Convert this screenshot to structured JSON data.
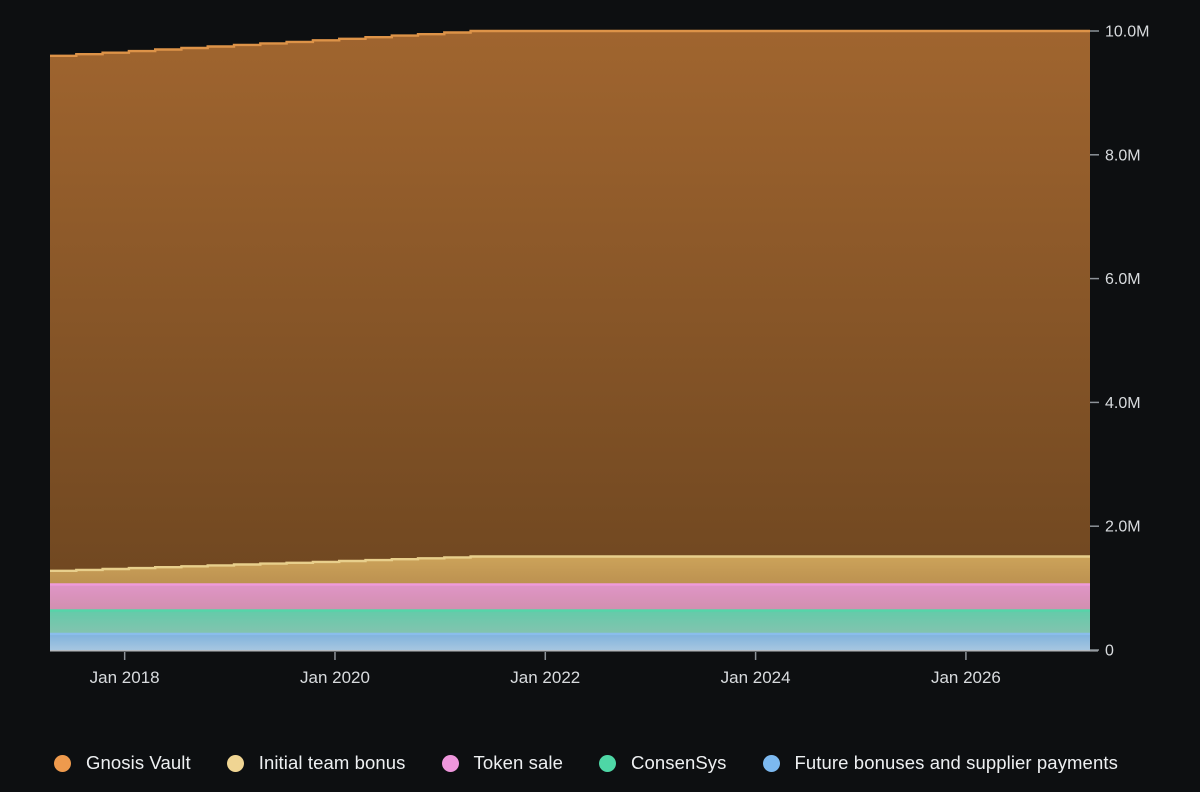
{
  "page": {
    "background_color": "#0d0f11"
  },
  "axis": {
    "line_color": "#c7cbd0",
    "tick_color": "#8d9399",
    "label_color": "#d8dbde"
  },
  "chart_data": {
    "type": "area",
    "stacked": true,
    "step_interpolation": true,
    "grid": false,
    "legend_position": "bottom",
    "x_unit": "decimal_year",
    "xlim": [
      2017.29,
      2027.18
    ],
    "ylim": [
      0,
      10
    ],
    "y_unit": "millions of tokens",
    "x_ticks": [
      {
        "value": 2018,
        "label": "Jan 2018"
      },
      {
        "value": 2020,
        "label": "Jan 2020"
      },
      {
        "value": 2022,
        "label": "Jan 2022"
      },
      {
        "value": 2024,
        "label": "Jan 2024"
      },
      {
        "value": 2026,
        "label": "Jan 2026"
      }
    ],
    "y_ticks": [
      {
        "value": 0,
        "label": "0"
      },
      {
        "value": 2,
        "label": "2.0M"
      },
      {
        "value": 4,
        "label": "4.0M"
      },
      {
        "value": 6,
        "label": "6.0M"
      },
      {
        "value": 8,
        "label": "8.0M"
      },
      {
        "value": 10,
        "label": "10.0M"
      }
    ],
    "x": [
      2017.29,
      2017.54,
      2017.79,
      2018.04,
      2018.29,
      2018.54,
      2018.79,
      2019.04,
      2019.29,
      2019.54,
      2019.79,
      2020.04,
      2020.29,
      2020.54,
      2020.79,
      2021.04,
      2021.29,
      2022,
      2023,
      2024,
      2025,
      2026,
      2027.18
    ],
    "series": [
      {
        "name": "Future bonuses and supplier payments",
        "color": "#7cb9f0",
        "line_color": "#8abdec",
        "fill_top": "#7fb2dd",
        "fill_bottom": "#a6c6e0",
        "values": [
          0.26,
          0.26,
          0.26,
          0.26,
          0.26,
          0.26,
          0.26,
          0.26,
          0.26,
          0.26,
          0.26,
          0.26,
          0.26,
          0.26,
          0.26,
          0.26,
          0.26,
          0.26,
          0.26,
          0.26,
          0.26,
          0.26,
          0.26
        ]
      },
      {
        "name": "ConsenSys",
        "color": "#4ed7a6",
        "line_color": "#55d5a9",
        "fill_top": "#63cba9",
        "fill_bottom": "#84c3af",
        "values": [
          0.38,
          0.38,
          0.38,
          0.38,
          0.38,
          0.38,
          0.38,
          0.38,
          0.38,
          0.38,
          0.38,
          0.38,
          0.38,
          0.38,
          0.38,
          0.38,
          0.38,
          0.38,
          0.38,
          0.38,
          0.38,
          0.38,
          0.38
        ]
      },
      {
        "name": "Token sale",
        "color": "#ee96dc",
        "line_color": "#ef9bdb",
        "fill_top": "#e095c7",
        "fill_bottom": "#d18fae",
        "values": [
          0.42,
          0.42,
          0.42,
          0.42,
          0.42,
          0.42,
          0.42,
          0.42,
          0.42,
          0.42,
          0.42,
          0.42,
          0.42,
          0.42,
          0.42,
          0.42,
          0.42,
          0.42,
          0.42,
          0.42,
          0.42,
          0.42,
          0.42
        ]
      },
      {
        "name": "Initial team bonus",
        "color": "#f0d593",
        "line_color": "#e8cf8c",
        "fill_top": "#cca35a",
        "fill_bottom": "#bc9150",
        "values": [
          0.22,
          0.234,
          0.249,
          0.263,
          0.278,
          0.292,
          0.306,
          0.321,
          0.335,
          0.349,
          0.364,
          0.378,
          0.393,
          0.407,
          0.421,
          0.436,
          0.45,
          0.45,
          0.45,
          0.45,
          0.45,
          0.45,
          0.45
        ]
      },
      {
        "name": "Gnosis Vault",
        "color": "#ee9a4d",
        "line_color": "#dd9348",
        "fill_top": "#a0652f",
        "fill_bottom": "#714821",
        "values": [
          8.32,
          8.331,
          8.341,
          8.352,
          8.363,
          8.373,
          8.384,
          8.394,
          8.405,
          8.415,
          8.426,
          8.436,
          8.447,
          8.458,
          8.468,
          8.479,
          8.49,
          8.49,
          8.49,
          8.49,
          8.49,
          8.49,
          8.49
        ]
      }
    ],
    "legend_order": [
      "Gnosis Vault",
      "Initial team bonus",
      "Token sale",
      "ConsenSys",
      "Future bonuses and supplier payments"
    ]
  }
}
